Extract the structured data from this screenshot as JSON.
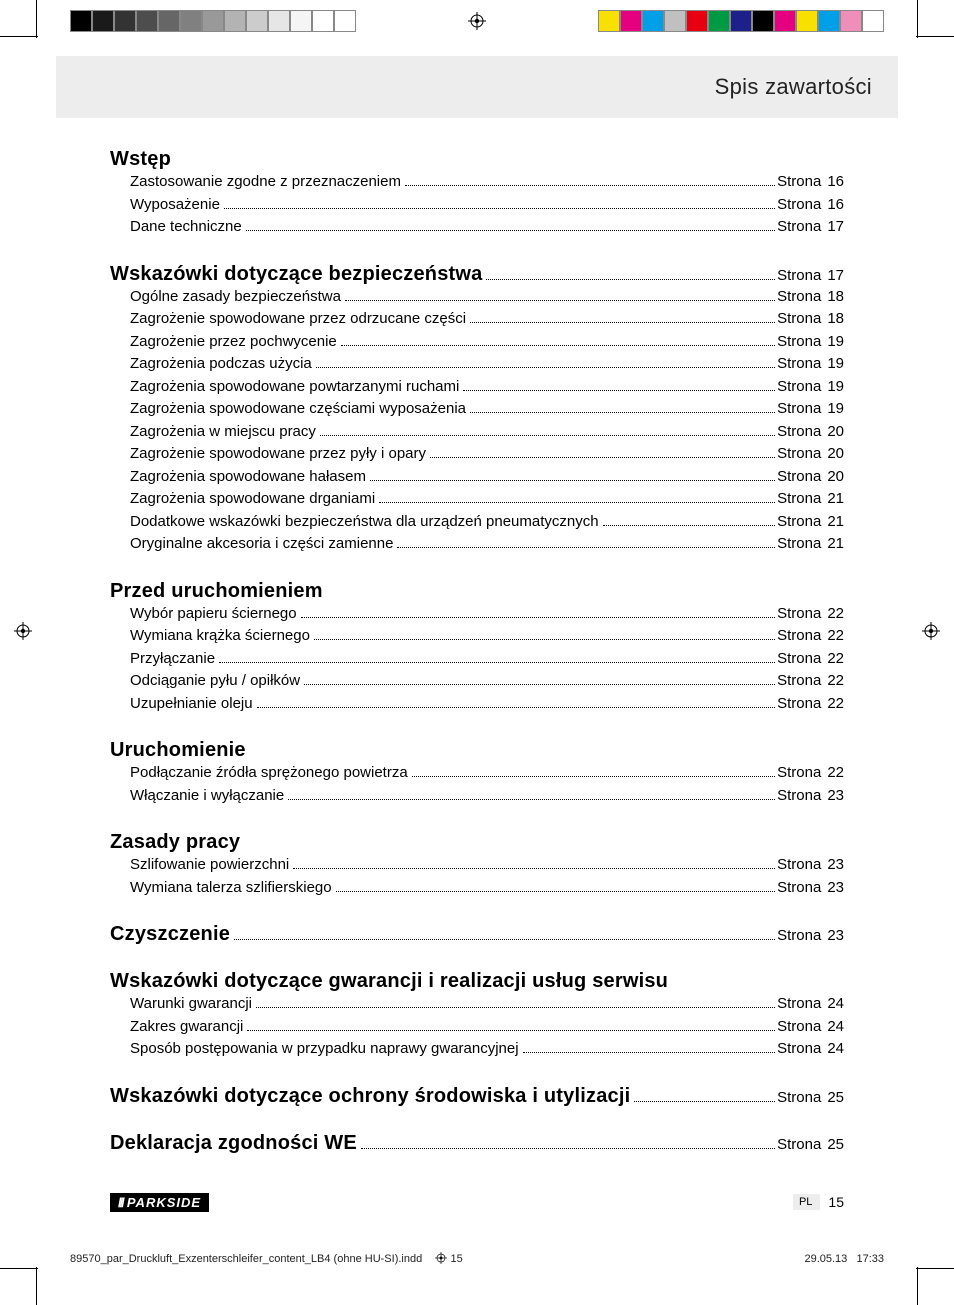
{
  "print_marks": {
    "left_bar_colors": [
      "#000000",
      "#1a1a1a",
      "#333333",
      "#4d4d4d",
      "#666666",
      "#808080",
      "#999999",
      "#b3b3b3",
      "#cccccc",
      "#e6e6e6",
      "#f5f5f5",
      "#ffffff",
      "#ffffff"
    ],
    "right_bar_colors": [
      "#f8e100",
      "#e4007f",
      "#00a0e9",
      "#c0c0c0",
      "#e60012",
      "#009944",
      "#1d2088",
      "#000000",
      "#e4007f",
      "#f8e100",
      "#00a0e9",
      "#ef8eb8",
      "#ffffff"
    ]
  },
  "header": {
    "title": "Spis zawartości"
  },
  "page_label": "Strona",
  "sections": [
    {
      "title": "Wstęp",
      "page": null,
      "items": [
        {
          "title": "Zastosowanie zgodne z przeznaczeniem",
          "page": "16"
        },
        {
          "title": "Wyposażenie",
          "page": "16"
        },
        {
          "title": "Dane techniczne",
          "page": "17"
        }
      ]
    },
    {
      "title": "Wskazówki dotyczące bezpieczeństwa",
      "page": "17",
      "items": [
        {
          "title": "Ogólne zasady bezpieczeństwa",
          "page": "18"
        },
        {
          "title": "Zagrożenie spowodowane przez odrzucane części",
          "page": "18"
        },
        {
          "title": "Zagrożenie przez pochwycenie",
          "page": "19"
        },
        {
          "title": "Zagrożenia podczas użycia",
          "page": "19"
        },
        {
          "title": "Zagrożenia spowodowane powtarzanymi ruchami",
          "page": "19"
        },
        {
          "title": "Zagrożenia spowodowane częściami wyposażenia",
          "page": "19"
        },
        {
          "title": "Zagrożenia w miejscu pracy",
          "page": "20"
        },
        {
          "title": "Zagrożenie spowodowane przez pyły i opary",
          "page": "20"
        },
        {
          "title": "Zagrożenia spowodowane hałasem",
          "page": "20"
        },
        {
          "title": "Zagrożenia spowodowane drganiami",
          "page": "21"
        },
        {
          "title": "Dodatkowe wskazówki bezpieczeństwa dla urządzeń pneumatycznych",
          "page": "21"
        },
        {
          "title": "Oryginalne akcesoria i części zamienne",
          "page": "21"
        }
      ]
    },
    {
      "title": "Przed uruchomieniem",
      "page": null,
      "items": [
        {
          "title": "Wybór papieru ściernego",
          "page": "22"
        },
        {
          "title": "Wymiana krążka ściernego",
          "page": "22"
        },
        {
          "title": "Przyłączanie",
          "page": "22"
        },
        {
          "title": "Odciąganie pyłu / opiłków",
          "page": "22"
        },
        {
          "title": "Uzupełnianie oleju",
          "page": "22"
        }
      ]
    },
    {
      "title": "Uruchomienie",
      "page": null,
      "items": [
        {
          "title": "Podłączanie źródła sprężonego powietrza",
          "page": "22"
        },
        {
          "title": "Włączanie i wyłączanie",
          "page": "23"
        }
      ]
    },
    {
      "title": "Zasady pracy",
      "page": null,
      "items": [
        {
          "title": "Szlifowanie powierzchni",
          "page": "23"
        },
        {
          "title": "Wymiana talerza szlifierskiego",
          "page": "23"
        }
      ]
    },
    {
      "title": "Czyszczenie",
      "page": "23",
      "items": []
    },
    {
      "title": "Wskazówki dotyczące gwarancji i realizacji usług serwisu",
      "page": null,
      "items": [
        {
          "title": "Warunki gwarancji",
          "page": "24"
        },
        {
          "title": "Zakres gwarancji",
          "page": "24"
        },
        {
          "title": "Sposób postępowania w przypadku naprawy gwarancyjnej",
          "page": "24"
        }
      ]
    },
    {
      "title": "Wskazówki dotyczące ochrony środowiska i utylizacji",
      "page": "25",
      "items": []
    },
    {
      "title": "Deklaracja zgodności WE",
      "page": "25",
      "items": []
    }
  ],
  "footer": {
    "brand": "PARKSIDE",
    "lang": "PL",
    "page_number": "15",
    "indd_file": "89570_par_Druckluft_Exzenterschleifer_content_LB4 (ohne HU-SI).indd",
    "indd_page": "15",
    "date": "29.05.13",
    "time": "17:33"
  },
  "colors": {
    "header_bg": "#ededed",
    "text": "#000000",
    "page_bg": "#ffffff"
  }
}
